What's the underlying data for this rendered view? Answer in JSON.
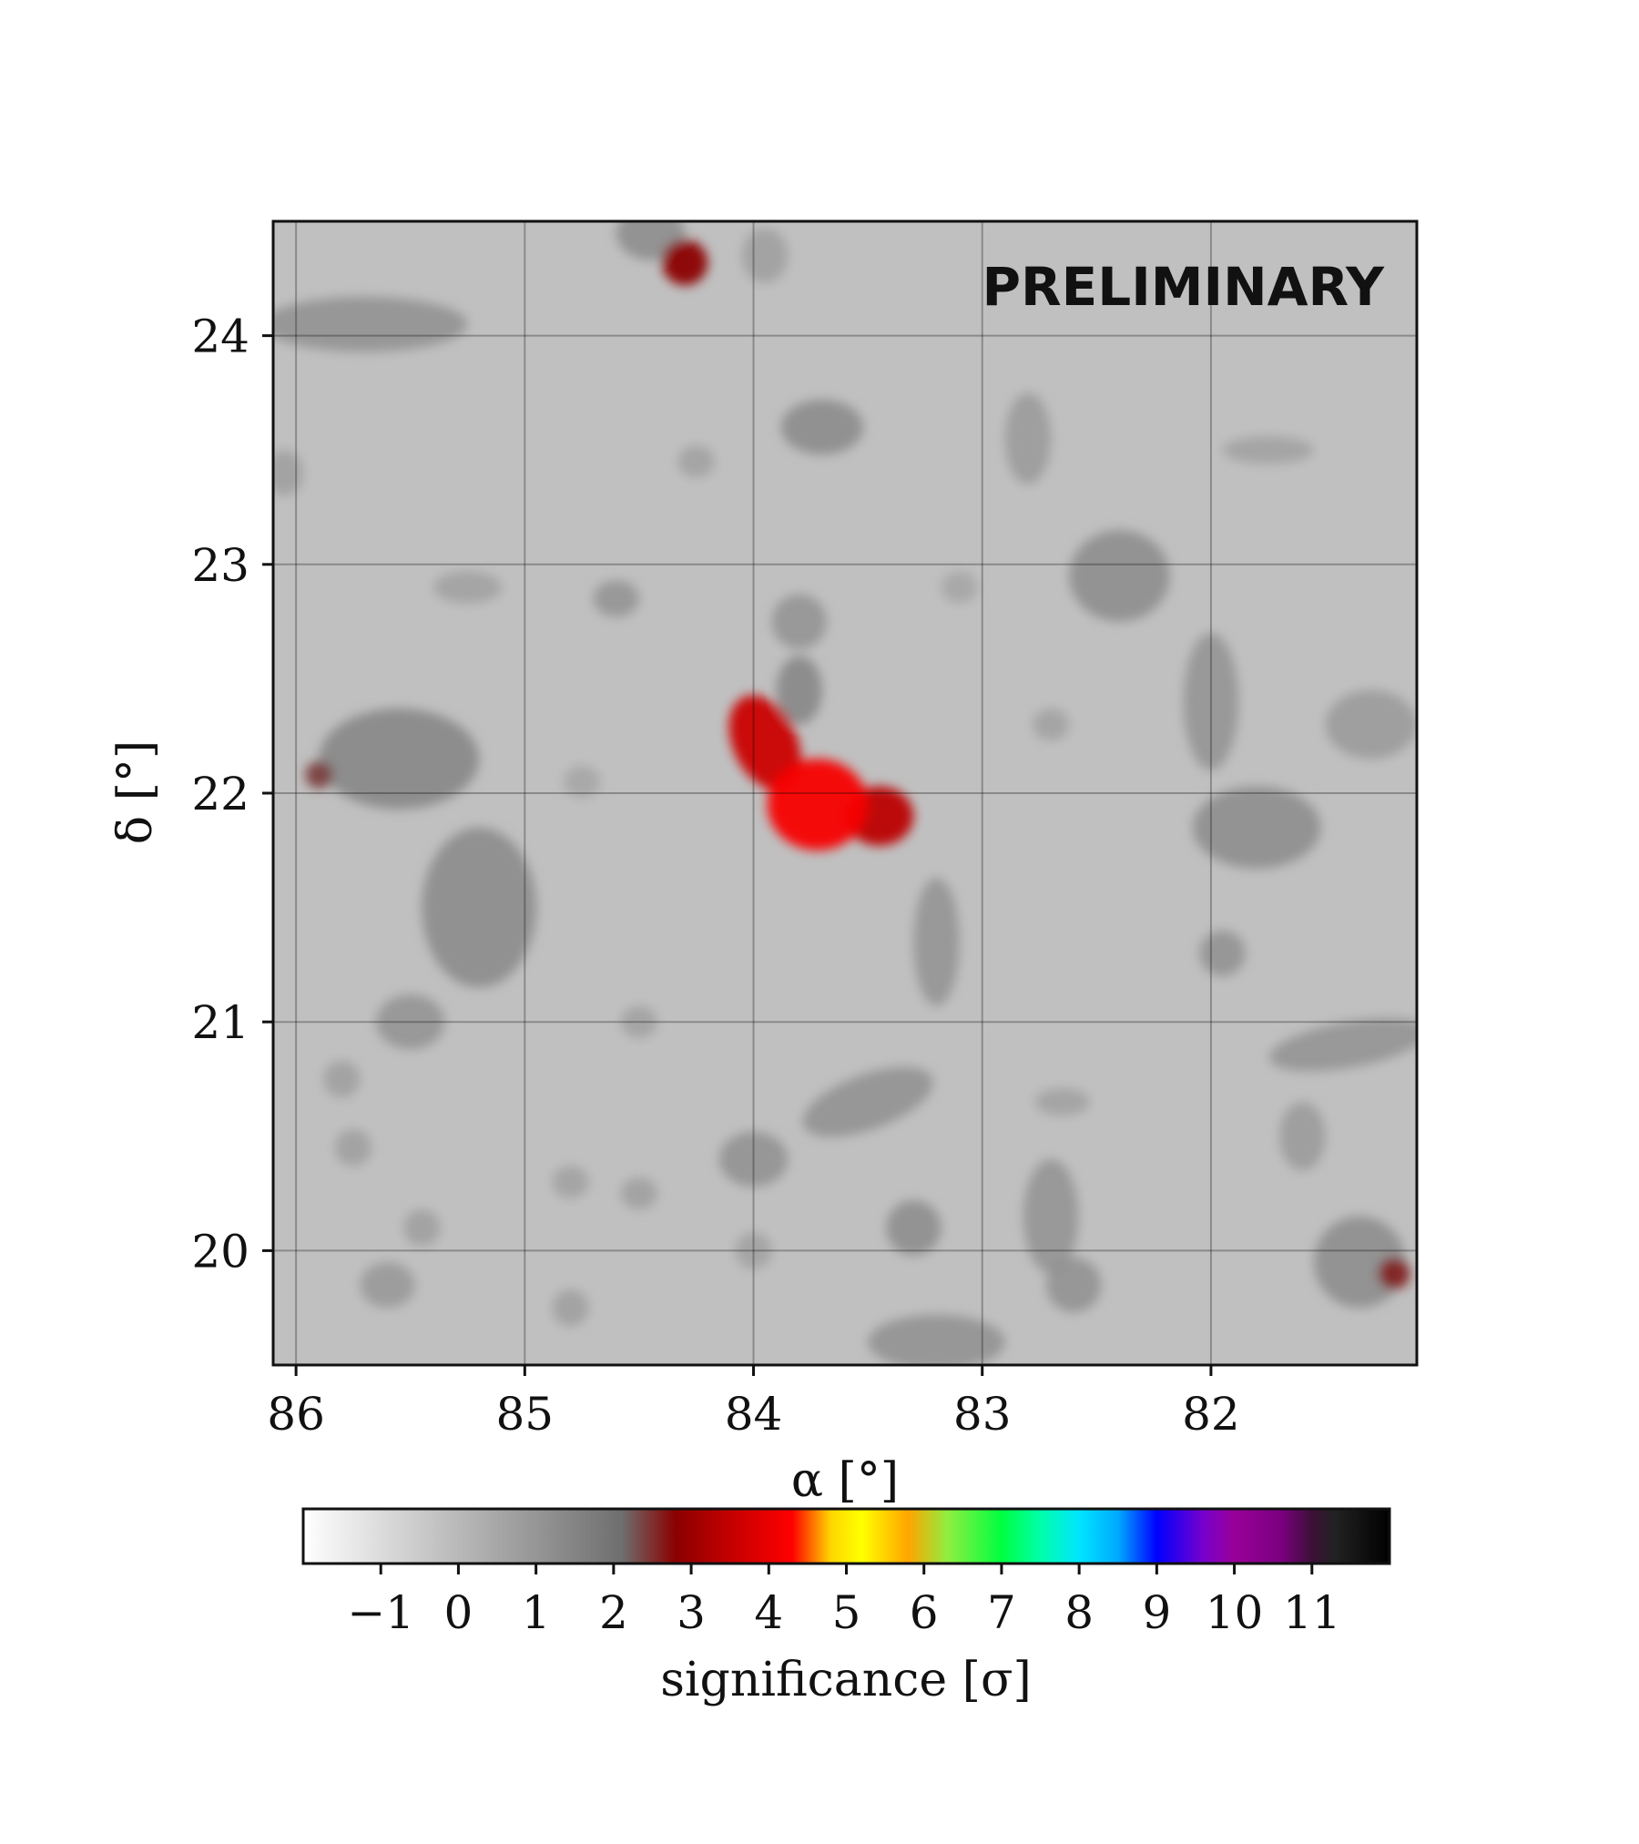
{
  "chart_data": {
    "type": "heatmap",
    "title": "",
    "watermark": "PRELIMINARY",
    "xlabel": "α [°]",
    "ylabel": "δ [°]",
    "xlim": [
      86.1,
      81.1
    ],
    "ylim": [
      19.5,
      24.5
    ],
    "x_ticks": [
      86,
      85,
      84,
      83,
      82
    ],
    "y_ticks": [
      24,
      23,
      22,
      21,
      20
    ],
    "x_tick_labels": [
      "86",
      "85",
      "84",
      "83",
      "82"
    ],
    "y_tick_labels": [
      "24",
      "23",
      "22",
      "21",
      "20"
    ],
    "grid": true,
    "background_level_sigma": 0,
    "colorbar": {
      "label": "significance [σ]",
      "range": [
        -2,
        12
      ],
      "ticks": [
        -1,
        0,
        1,
        2,
        3,
        4,
        5,
        6,
        7,
        8,
        9,
        10,
        11
      ],
      "tick_labels": [
        "−1",
        "0",
        "1",
        "2",
        "3",
        "4",
        "5",
        "6",
        "7",
        "8",
        "9",
        "10",
        "11"
      ],
      "colormap": [
        {
          "value": -2,
          "color": "#ffffff"
        },
        {
          "value": 2.1,
          "color": "#6f6f6f"
        },
        {
          "value": 2.8,
          "color": "#8b0000"
        },
        {
          "value": 3.5,
          "color": "#c40000"
        },
        {
          "value": 4.3,
          "color": "#ff0000"
        },
        {
          "value": 4.8,
          "color": "#ffd700"
        },
        {
          "value": 5.2,
          "color": "#ffff00"
        },
        {
          "value": 5.8,
          "color": "#ffa500"
        },
        {
          "value": 6.3,
          "color": "#90ee40"
        },
        {
          "value": 7,
          "color": "#00ff40"
        },
        {
          "value": 7.5,
          "color": "#00ffaa"
        },
        {
          "value": 8,
          "color": "#00e5ff"
        },
        {
          "value": 8.5,
          "color": "#00aaff"
        },
        {
          "value": 9,
          "color": "#0000ff"
        },
        {
          "value": 9.6,
          "color": "#7700cc"
        },
        {
          "value": 10,
          "color": "#990099"
        },
        {
          "value": 10.6,
          "color": "#7a0080"
        },
        {
          "value": 11,
          "color": "#3d1038"
        },
        {
          "value": 11.3,
          "color": "#222222"
        },
        {
          "value": 12,
          "color": "#000000"
        }
      ]
    },
    "hotspots": [
      {
        "ra": 83.72,
        "dec": 21.95,
        "sra": 0.22,
        "sdec": 0.2,
        "angle": 0,
        "sigma": 4.2
      },
      {
        "ra": 83.95,
        "dec": 22.22,
        "sra": 0.14,
        "sdec": 0.22,
        "angle": -25,
        "sigma": 3.6
      },
      {
        "ra": 83.45,
        "dec": 21.9,
        "sra": 0.15,
        "sdec": 0.13,
        "angle": 0,
        "sigma": 3.4
      },
      {
        "ra": 83.8,
        "dec": 22.45,
        "sra": 0.1,
        "sdec": 0.15,
        "angle": 0,
        "sigma": 1.5
      },
      {
        "ra": 84.3,
        "dec": 24.32,
        "sra": 0.1,
        "sdec": 0.1,
        "angle": 0,
        "sigma": 2.8
      },
      {
        "ra": 85.9,
        "dec": 22.08,
        "sra": 0.06,
        "sdec": 0.06,
        "angle": 0,
        "sigma": 2.4
      },
      {
        "ra": 81.2,
        "dec": 19.9,
        "sra": 0.07,
        "sdec": 0.07,
        "angle": 0,
        "sigma": 2.6
      },
      {
        "ra": 85.55,
        "dec": 22.15,
        "sra": 0.35,
        "sdec": 0.22,
        "angle": 0,
        "sigma": 1.5
      },
      {
        "ra": 85.2,
        "dec": 21.5,
        "sra": 0.25,
        "sdec": 0.35,
        "angle": 0,
        "sigma": 1.4
      },
      {
        "ra": 85.5,
        "dec": 21.0,
        "sra": 0.15,
        "sdec": 0.12,
        "angle": 0,
        "sigma": 1.1
      },
      {
        "ra": 85.7,
        "dec": 24.05,
        "sra": 0.45,
        "sdec": 0.12,
        "angle": 0,
        "sigma": 1.2
      },
      {
        "ra": 84.45,
        "dec": 24.45,
        "sra": 0.15,
        "sdec": 0.12,
        "angle": 0,
        "sigma": 1.3
      },
      {
        "ra": 83.7,
        "dec": 23.6,
        "sra": 0.18,
        "sdec": 0.12,
        "angle": 0,
        "sigma": 1.4
      },
      {
        "ra": 84.6,
        "dec": 22.85,
        "sra": 0.1,
        "sdec": 0.08,
        "angle": 0,
        "sigma": 1.1
      },
      {
        "ra": 83.8,
        "dec": 22.75,
        "sra": 0.12,
        "sdec": 0.12,
        "angle": 0,
        "sigma": 1.1
      },
      {
        "ra": 82.4,
        "dec": 22.95,
        "sra": 0.22,
        "sdec": 0.2,
        "angle": 0,
        "sigma": 1.3
      },
      {
        "ra": 82.0,
        "dec": 22.4,
        "sra": 0.12,
        "sdec": 0.3,
        "angle": 0,
        "sigma": 1.1
      },
      {
        "ra": 81.8,
        "dec": 21.85,
        "sra": 0.28,
        "sdec": 0.18,
        "angle": 0,
        "sigma": 1.3
      },
      {
        "ra": 81.95,
        "dec": 21.3,
        "sra": 0.1,
        "sdec": 0.1,
        "angle": 0,
        "sigma": 1.2
      },
      {
        "ra": 83.2,
        "dec": 21.35,
        "sra": 0.1,
        "sdec": 0.28,
        "angle": 0,
        "sigma": 1.1
      },
      {
        "ra": 83.5,
        "dec": 20.65,
        "sra": 0.3,
        "sdec": 0.12,
        "angle": -20,
        "sigma": 1.2
      },
      {
        "ra": 84.0,
        "dec": 20.4,
        "sra": 0.15,
        "sdec": 0.12,
        "angle": 0,
        "sigma": 1.2
      },
      {
        "ra": 83.3,
        "dec": 20.1,
        "sra": 0.12,
        "sdec": 0.12,
        "angle": 0,
        "sigma": 1.3
      },
      {
        "ra": 82.7,
        "dec": 20.15,
        "sra": 0.12,
        "sdec": 0.25,
        "angle": 0,
        "sigma": 1.1
      },
      {
        "ra": 82.6,
        "dec": 19.85,
        "sra": 0.12,
        "sdec": 0.12,
        "angle": 0,
        "sigma": 1.2
      },
      {
        "ra": 83.2,
        "dec": 19.6,
        "sra": 0.3,
        "sdec": 0.12,
        "angle": 0,
        "sigma": 1.2
      },
      {
        "ra": 81.4,
        "dec": 20.9,
        "sra": 0.35,
        "sdec": 0.1,
        "angle": -10,
        "sigma": 1.1
      },
      {
        "ra": 81.35,
        "dec": 19.95,
        "sra": 0.2,
        "sdec": 0.2,
        "angle": 0,
        "sigma": 1.3
      },
      {
        "ra": 81.3,
        "dec": 22.3,
        "sra": 0.2,
        "sdec": 0.15,
        "angle": 0,
        "sigma": 0.9
      },
      {
        "ra": 81.6,
        "dec": 20.5,
        "sra": 0.1,
        "sdec": 0.15,
        "angle": 0,
        "sigma": 0.9
      },
      {
        "ra": 82.8,
        "dec": 23.55,
        "sra": 0.1,
        "sdec": 0.2,
        "angle": 0,
        "sigma": 0.9
      },
      {
        "ra": 85.6,
        "dec": 19.85,
        "sra": 0.12,
        "sdec": 0.1,
        "angle": 0,
        "sigma": 1.0
      },
      {
        "ra": 84.8,
        "dec": 19.75,
        "sra": 0.08,
        "sdec": 0.08,
        "angle": 0,
        "sigma": 0.8
      },
      {
        "ra": 84.5,
        "dec": 20.25,
        "sra": 0.08,
        "sdec": 0.07,
        "angle": 0,
        "sigma": 0.8
      },
      {
        "ra": 84.8,
        "dec": 20.3,
        "sra": 0.08,
        "sdec": 0.07,
        "angle": 0,
        "sigma": 0.7
      },
      {
        "ra": 85.45,
        "dec": 20.1,
        "sra": 0.08,
        "sdec": 0.08,
        "angle": 0,
        "sigma": 0.8
      },
      {
        "ra": 85.75,
        "dec": 20.45,
        "sra": 0.08,
        "sdec": 0.08,
        "angle": 0,
        "sigma": 0.8
      },
      {
        "ra": 85.8,
        "dec": 20.75,
        "sra": 0.08,
        "sdec": 0.08,
        "angle": 0,
        "sigma": 0.8
      },
      {
        "ra": 82.7,
        "dec": 22.3,
        "sra": 0.08,
        "sdec": 0.07,
        "angle": 0,
        "sigma": 0.7
      },
      {
        "ra": 82.65,
        "dec": 20.65,
        "sra": 0.12,
        "sdec": 0.06,
        "angle": 0,
        "sigma": 0.7
      },
      {
        "ra": 85.25,
        "dec": 22.9,
        "sra": 0.15,
        "sdec": 0.07,
        "angle": 0,
        "sigma": 0.7
      },
      {
        "ra": 84.0,
        "dec": 20.0,
        "sra": 0.08,
        "sdec": 0.08,
        "angle": 0,
        "sigma": 0.7
      },
      {
        "ra": 81.75,
        "dec": 23.5,
        "sra": 0.2,
        "sdec": 0.06,
        "angle": 0,
        "sigma": 0.7
      },
      {
        "ra": 84.25,
        "dec": 23.45,
        "sra": 0.08,
        "sdec": 0.07,
        "angle": 0,
        "sigma": 0.7
      },
      {
        "ra": 86.05,
        "dec": 23.4,
        "sra": 0.08,
        "sdec": 0.1,
        "angle": 0,
        "sigma": 0.8
      },
      {
        "ra": 83.1,
        "dec": 22.9,
        "sra": 0.08,
        "sdec": 0.07,
        "angle": 0,
        "sigma": 0.6
      },
      {
        "ra": 83.95,
        "dec": 24.35,
        "sra": 0.1,
        "sdec": 0.12,
        "angle": 0,
        "sigma": 0.8
      },
      {
        "ra": 84.5,
        "dec": 21.0,
        "sra": 0.08,
        "sdec": 0.07,
        "angle": 0,
        "sigma": 0.7
      },
      {
        "ra": 84.75,
        "dec": 22.05,
        "sra": 0.08,
        "sdec": 0.07,
        "angle": 0,
        "sigma": 0.6
      }
    ]
  }
}
